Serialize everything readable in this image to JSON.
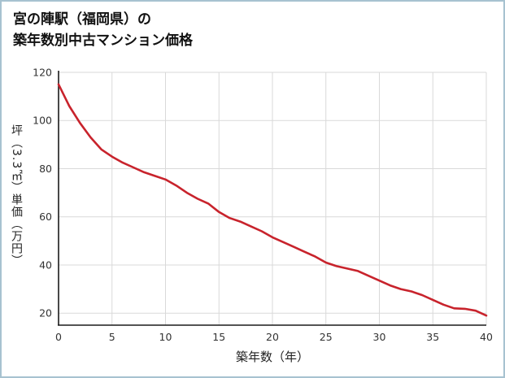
{
  "title": {
    "line1": "宮の陣駅（福岡県）の",
    "line2": "築年数別中古マンション価格"
  },
  "chart_data": {
    "type": "line",
    "title": "宮の陣駅（福岡県）の築年数別中古マンション価格",
    "xlabel": "築年数（年）",
    "ylabel": "坪（3.3㎡）単価（万円）",
    "xlim": [
      0,
      40
    ],
    "ylim": [
      15,
      120
    ],
    "x_ticks": [
      0,
      5,
      10,
      15,
      20,
      25,
      30,
      35,
      40
    ],
    "y_ticks": [
      20,
      40,
      60,
      80,
      100,
      120
    ],
    "grid": true,
    "legend": "none",
    "x": [
      0,
      1,
      2,
      3,
      4,
      5,
      6,
      7,
      8,
      9,
      10,
      11,
      12,
      13,
      14,
      15,
      16,
      17,
      18,
      19,
      20,
      21,
      22,
      23,
      24,
      25,
      26,
      27,
      28,
      29,
      30,
      31,
      32,
      33,
      34,
      35,
      36,
      37,
      38,
      39,
      40
    ],
    "values": [
      115,
      106,
      99,
      93,
      88,
      85,
      82.5,
      80.5,
      78.5,
      77,
      75.5,
      73,
      70,
      67.5,
      65.5,
      62,
      59.5,
      58,
      56,
      54,
      51.5,
      49.5,
      47.5,
      45.5,
      43.5,
      41,
      39.5,
      38.5,
      37.5,
      35.5,
      33.5,
      31.5,
      30,
      29,
      27.5,
      25.5,
      23.5,
      22,
      21.8,
      21,
      19
    ],
    "colors": {
      "line": "#c8232c",
      "grid": "#d9d9d9",
      "axis": "#1a1a1a",
      "tick_text": "#333333",
      "border": "#a7c2d0"
    }
  }
}
